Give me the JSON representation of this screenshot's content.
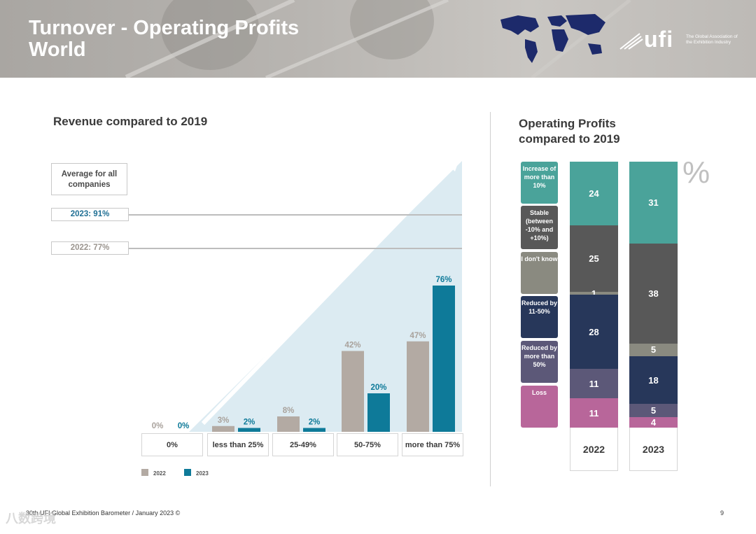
{
  "header": {
    "title_line1": "Turnover - Operating Profits",
    "title_line2": "World",
    "logo_word": "ufi",
    "logo_tagline": "The Global Association of the Exhibition Industry"
  },
  "left": {
    "title": "Revenue compared to 2019",
    "average_label": "Average for all companies",
    "avg_2023": "2023: 91%",
    "avg_2022": "2022: 77%"
  },
  "right": {
    "title_line1": "Operating Profits",
    "title_line2": "compared to 2019",
    "percent_symbol": "%"
  },
  "footer": {
    "text": "30th UFI Global Exhibition Barometer / January 2023 ©",
    "page": "9",
    "watermark": "八数跨境"
  },
  "colors": {
    "c2022": "#b3aaa3",
    "c2023": "#0e7a99",
    "increase": "#4aa39a",
    "stable": "#585858",
    "dontknow": "#8a8a80",
    "reduced11": "#27375a",
    "reduced50": "#5c5878",
    "loss": "#b8669a"
  },
  "chart_data": [
    {
      "type": "bar",
      "title": "Revenue compared to 2019",
      "categories": [
        "0%",
        "less than 25%",
        "25-49%",
        "50-75%",
        "more than 75%"
      ],
      "series": [
        {
          "name": "2022",
          "values": [
            0,
            3,
            8,
            42,
            47
          ]
        },
        {
          "name": "2023",
          "values": [
            0,
            2,
            2,
            20,
            76
          ]
        }
      ],
      "value_labels": {
        "2022": [
          "0%",
          "3%",
          "8%",
          "42%",
          "47%"
        ],
        "2023": [
          "0%",
          "2%",
          "2%",
          "20%",
          "76%"
        ]
      },
      "ylim": [
        0,
        100
      ],
      "legend": [
        "2022",
        "2023"
      ]
    },
    {
      "type": "bar",
      "stacked": true,
      "title": "Operating Profits compared to 2019",
      "categories": [
        "2022",
        "2023"
      ],
      "series": [
        {
          "name": "Increase of more than 10%",
          "values": [
            24,
            31
          ]
        },
        {
          "name": "Stable (between -10% and +10%)",
          "values": [
            25,
            38
          ]
        },
        {
          "name": "I don't know",
          "values": [
            1,
            5
          ]
        },
        {
          "name": "Reduced by 11-50%",
          "values": [
            28,
            18
          ]
        },
        {
          "name": "Reduced by more than 50%",
          "values": [
            11,
            5
          ]
        },
        {
          "name": "Loss",
          "values": [
            11,
            4
          ]
        }
      ],
      "unit": "%"
    }
  ]
}
